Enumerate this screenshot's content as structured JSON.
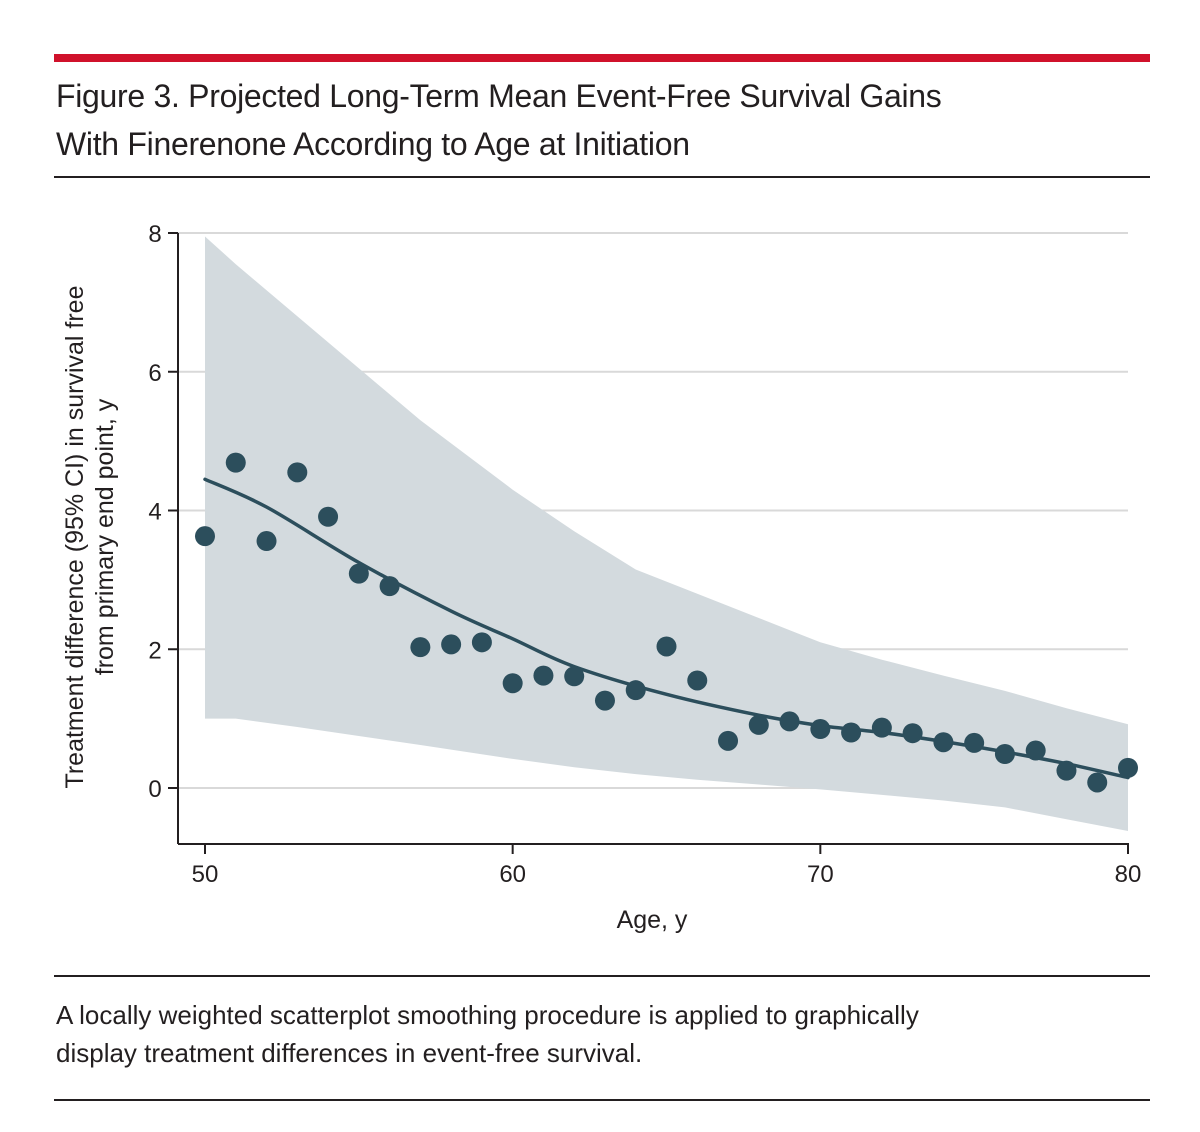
{
  "figure": {
    "title_line1": "Figure 3. Projected Long-Term Mean Event-Free Survival Gains",
    "title_line2": "With Finerenone According to Age at Initiation",
    "caption_line1": "A locally weighted scatterplot smoothing procedure is applied to graphically",
    "caption_line2": "display treatment differences in event-free survival."
  },
  "colors": {
    "accent_rule": "#d0112b",
    "band": "#d3dade",
    "line": "#2c4e5c",
    "points": "#2c4e5c",
    "grid": "#d9d9d9"
  },
  "chart_data": {
    "type": "scatter",
    "title": "Figure 3. Projected Long-Term Mean Event-Free Survival Gains With Finerenone According to Age at Initiation",
    "xlabel": "Age, y",
    "ylabel_line1": "Treatment difference (95% CI) in survival free",
    "ylabel_line2": "from primary end point, y",
    "xlim": [
      50,
      80
    ],
    "ylim": [
      -0.8,
      8
    ],
    "xticks": [
      50,
      60,
      70,
      80
    ],
    "yticks": [
      0,
      2,
      4,
      6,
      8
    ],
    "grid": "horizontal",
    "points": {
      "x": [
        50,
        51,
        52,
        53,
        54,
        55,
        56,
        57,
        58,
        59,
        60,
        61,
        62,
        63,
        64,
        65,
        66,
        67,
        68,
        69,
        70,
        71,
        72,
        73,
        74,
        75,
        76,
        77,
        78,
        79,
        80
      ],
      "y": [
        3.63,
        4.69,
        3.56,
        4.55,
        3.91,
        3.09,
        2.91,
        2.03,
        2.07,
        2.1,
        1.51,
        1.62,
        1.61,
        1.26,
        1.41,
        2.04,
        1.55,
        0.68,
        0.91,
        0.96,
        0.85,
        0.8,
        0.87,
        0.79,
        0.66,
        0.65,
        0.49,
        0.54,
        0.25,
        0.08,
        0.29
      ]
    },
    "smooth": {
      "name": "LOWESS",
      "x": [
        50,
        52,
        55,
        58,
        60,
        62,
        65,
        68,
        70,
        72,
        74,
        76,
        78,
        80
      ],
      "y": [
        4.45,
        4.05,
        3.25,
        2.55,
        2.15,
        1.75,
        1.35,
        1.05,
        0.9,
        0.8,
        0.67,
        0.52,
        0.35,
        0.15
      ]
    },
    "ci_band": {
      "x": [
        50,
        51,
        53,
        55,
        57,
        60,
        62,
        64,
        66,
        68,
        70,
        72,
        74,
        76,
        78,
        80
      ],
      "lower": [
        1.0,
        1.0,
        0.88,
        0.75,
        0.62,
        0.42,
        0.3,
        0.2,
        0.12,
        0.05,
        -0.02,
        -0.1,
        -0.18,
        -0.28,
        -0.45,
        -0.62
      ],
      "upper": [
        7.95,
        7.55,
        6.8,
        6.05,
        5.3,
        4.3,
        3.7,
        3.15,
        2.8,
        2.45,
        2.1,
        1.85,
        1.62,
        1.4,
        1.15,
        0.92
      ]
    }
  }
}
